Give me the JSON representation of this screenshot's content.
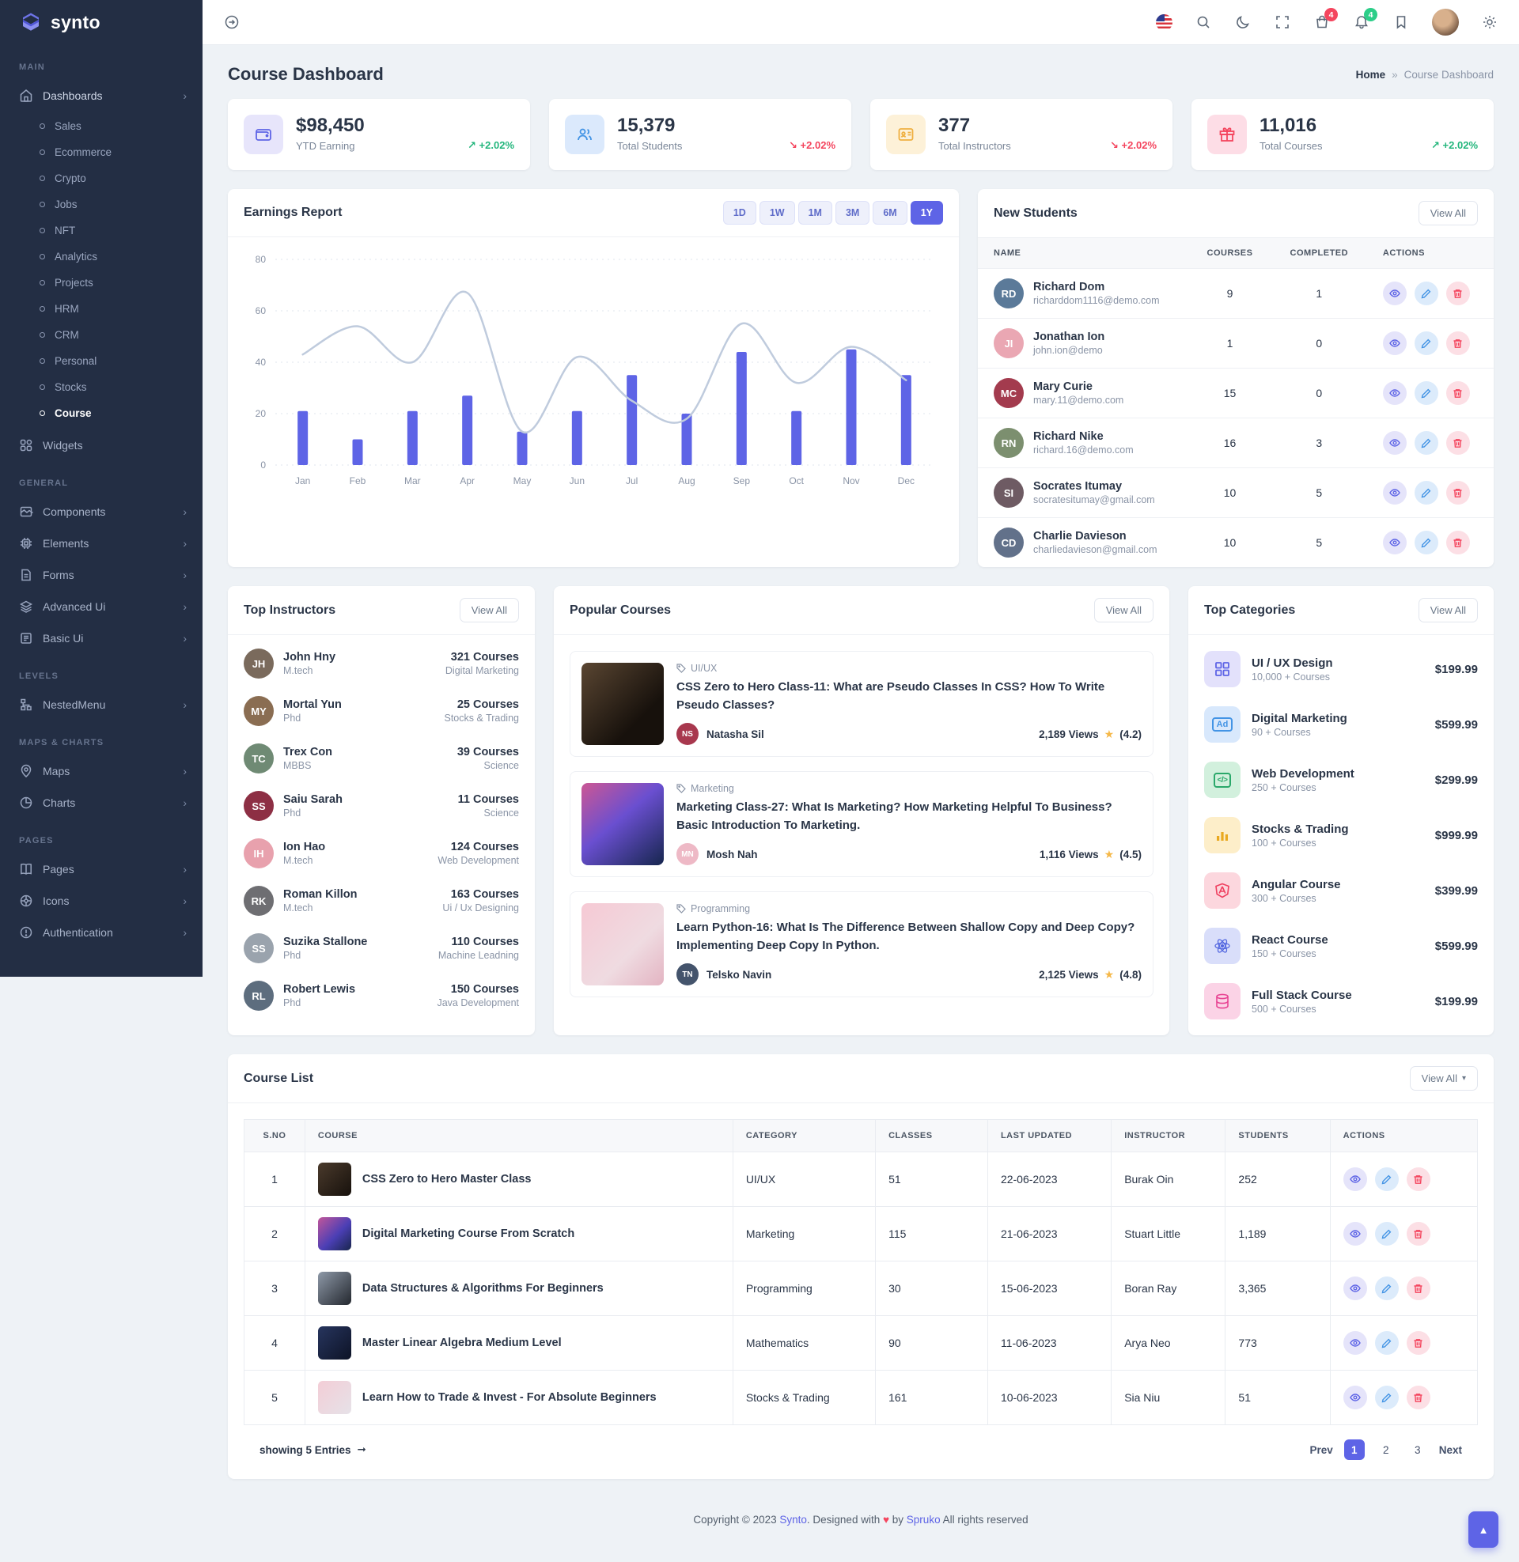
{
  "colors": {
    "primary": "#5e64e6",
    "green": "#23b67c",
    "red": "#f4455e",
    "sidebar_bg": "#232e44"
  },
  "sidebar": {
    "brand": "synto",
    "section_main": "MAIN",
    "dashboards": "Dashboards",
    "dashboard_children": [
      "Sales",
      "Ecommerce",
      "Crypto",
      "Jobs",
      "NFT",
      "Analytics",
      "Projects",
      "HRM",
      "CRM",
      "Personal",
      "Stocks",
      "Course"
    ],
    "active_child": "Course",
    "widgets": "Widgets",
    "section_general": "GENERAL",
    "general_items": [
      "Components",
      "Elements",
      "Forms",
      "Advanced Ui",
      "Basic Ui"
    ],
    "section_levels": "LEVELS",
    "levels_items": [
      "NestedMenu"
    ],
    "section_maps": "MAPS & CHARTS",
    "maps_items": [
      "Maps",
      "Charts"
    ],
    "section_pages": "PAGES",
    "pages_items": [
      "Pages",
      "Icons",
      "Authentication"
    ]
  },
  "topbar": {
    "cart_badge": "4",
    "notification_badge": "4"
  },
  "page": {
    "title": "Course Dashboard",
    "breadcrumb_home": "Home",
    "breadcrumb_sep": "»",
    "breadcrumb_current": "Course Dashboard"
  },
  "stats": [
    {
      "value": "$98,450",
      "label": "YTD Earning",
      "trend": "+2.02%",
      "trend_dir": "up",
      "trend_arrow": "↗",
      "icon": "wallet-icon",
      "icon_style": "background:#e7e5fb;color:#5e64e6"
    },
    {
      "value": "15,379",
      "label": "Total Students",
      "trend": "+2.02%",
      "trend_dir": "down",
      "trend_arrow": "↘",
      "icon": "students-icon",
      "icon_style": "background:#dbe9fc;color:#4394e5"
    },
    {
      "value": "377",
      "label": "Total Instructors",
      "trend": "+2.02%",
      "trend_dir": "down",
      "trend_arrow": "↘",
      "icon": "id-card-icon",
      "icon_style": "background:#fdf1d8;color:#efb041"
    },
    {
      "value": "11,016",
      "label": "Total Courses",
      "trend": "+2.02%",
      "trend_dir": "up",
      "trend_arrow": "↗",
      "icon": "gift-icon",
      "icon_style": "background:#fddde6;color:#f4455e"
    }
  ],
  "earnings": {
    "title": "Earnings Report",
    "ranges": [
      "1D",
      "1W",
      "1M",
      "3M",
      "6M",
      "1Y"
    ],
    "active": "1Y"
  },
  "chart_data": {
    "type": "bar",
    "title": "Earnings Report",
    "categories": [
      "Jan",
      "Feb",
      "Mar",
      "Apr",
      "May",
      "Jun",
      "Jul",
      "Aug",
      "Sep",
      "Oct",
      "Nov",
      "Dec"
    ],
    "series": [
      {
        "name": "Earnings",
        "type": "bar",
        "values": [
          21,
          10,
          21,
          27,
          13,
          21,
          35,
          20,
          44,
          21,
          45,
          35
        ]
      },
      {
        "name": "Trend",
        "type": "line",
        "values": [
          43,
          54,
          40,
          67,
          13,
          42,
          25,
          18,
          55,
          32,
          46,
          33
        ]
      }
    ],
    "ylim": [
      0,
      80
    ],
    "yticks": [
      0,
      20,
      40,
      60,
      80
    ],
    "grid": "dashed-horizontal",
    "legend": "none",
    "bar_color": "#5e64e6",
    "line_color": "#bfcbdd"
  },
  "new_students": {
    "title": "New Students",
    "view_all": "View All",
    "columns": [
      "NAME",
      "COURSES",
      "COMPLETED",
      "ACTIONS"
    ],
    "rows": [
      {
        "name": "Richard Dom",
        "email": "richarddom1116@demo.com",
        "courses": "9",
        "completed": "1",
        "initials": "RD",
        "avatar_style": "background:#5b7a99"
      },
      {
        "name": "Jonathan Ion",
        "email": "john.ion@demo",
        "courses": "1",
        "completed": "0",
        "initials": "JI",
        "avatar_style": "background:#eaa7b3"
      },
      {
        "name": "Mary Curie",
        "email": "mary.11@demo.com",
        "courses": "15",
        "completed": "0",
        "initials": "MC",
        "avatar_style": "background:#a33b4e"
      },
      {
        "name": "Richard Nike",
        "email": "richard.16@demo.com",
        "courses": "16",
        "completed": "3",
        "initials": "RN",
        "avatar_style": "background:#7c8f6f"
      },
      {
        "name": "Socrates Itumay",
        "email": "socratesitumay@gmail.com",
        "courses": "10",
        "completed": "5",
        "initials": "SI",
        "avatar_style": "background:#6e5b63"
      },
      {
        "name": "Charlie Davieson",
        "email": "charliedavieson@gmail.com",
        "courses": "10",
        "completed": "5",
        "initials": "CD",
        "avatar_style": "background:#62718a"
      }
    ]
  },
  "top_instructors": {
    "title": "Top Instructors",
    "view_all": "View All",
    "items": [
      {
        "name": "John Hny",
        "degree": "M.tech",
        "courses": "321 Courses",
        "field": "Digital Marketing",
        "initials": "JH",
        "avatar_style": "background:#7a6a5c"
      },
      {
        "name": "Mortal Yun",
        "degree": "Phd",
        "courses": "25 Courses",
        "field": "Stocks & Trading",
        "initials": "MY",
        "avatar_style": "background:#8a6d52"
      },
      {
        "name": "Trex Con",
        "degree": "MBBS",
        "courses": "39 Courses",
        "field": "Science",
        "initials": "TC",
        "avatar_style": "background:#6f8a74"
      },
      {
        "name": "Saiu Sarah",
        "degree": "Phd",
        "courses": "11 Courses",
        "field": "Science",
        "initials": "SS",
        "avatar_style": "background:#8d2f44"
      },
      {
        "name": "Ion Hao",
        "degree": "M.tech",
        "courses": "124 Courses",
        "field": "Web Development",
        "initials": "IH",
        "avatar_style": "background:#e8a1ad"
      },
      {
        "name": "Roman Killon",
        "degree": "M.tech",
        "courses": "163 Courses",
        "field": "Ui / Ux Designing",
        "initials": "RK",
        "avatar_style": "background:#6e6e72"
      },
      {
        "name": "Suzika Stallone",
        "degree": "Phd",
        "courses": "110 Courses",
        "field": "Machine Leadning",
        "initials": "SS",
        "avatar_style": "background:#9aa3ad"
      },
      {
        "name": "Robert Lewis",
        "degree": "Phd",
        "courses": "150 Courses",
        "field": "Java Development",
        "initials": "RL",
        "avatar_style": "background:#5d6d7e"
      }
    ]
  },
  "popular_courses": {
    "title": "Popular Courses",
    "view_all": "View All",
    "items": [
      {
        "category": "UI/UX",
        "title": "CSS Zero to Hero Class-11: What are Pseudo Classes In CSS? How To Write Pseudo Classes?",
        "author": "Natasha Sil",
        "author_initials": "NS",
        "author_style": "background:#a8384e",
        "views": "2,189 Views",
        "rating": "(4.2)",
        "thumb_style": "background:linear-gradient(135deg,#5a4632,#17110c 70%)"
      },
      {
        "category": "Marketing",
        "title": "Marketing Class-27: What Is Marketing? How Marketing Helpful To Business? Basic Introduction To Marketing.",
        "author": "Mosh Nah",
        "author_initials": "MN",
        "author_style": "background:#eeb9c6",
        "views": "1,116 Views",
        "rating": "(4.5)",
        "thumb_style": "background:linear-gradient(140deg,#c2569a 5%,#6a4fd0 45%,#16264e)"
      },
      {
        "category": "Programming",
        "title": "Learn Python-16: What Is The Difference Between Shallow Copy and Deep Copy? Implementing Deep Copy In Python.",
        "author": "Telsko Navin",
        "author_initials": "TN",
        "author_style": "background:#44546c",
        "views": "2,125 Views",
        "rating": "(4.8)",
        "thumb_style": "background:linear-gradient(135deg,#f6c9d4,#efdbe1 60%,#e3b4c2)"
      }
    ]
  },
  "top_categories": {
    "title": "Top Categories",
    "view_all": "View All",
    "items": [
      {
        "name": "UI / UX Design",
        "count": "10,000 + Courses",
        "price": "$199.99",
        "icon": "grid-icon",
        "icon_style": "background:#e3e1fb;color:#5e64e6"
      },
      {
        "name": "Digital Marketing",
        "count": "90 + Courses",
        "price": "$599.99",
        "icon": "ad-icon",
        "icon_style": "background:#d8e8fc;color:#4394e5"
      },
      {
        "name": "Web Development",
        "count": "250 + Courses",
        "price": "$299.99",
        "icon": "code-icon",
        "icon_style": "background:#d2f0dd;color:#2aa86a"
      },
      {
        "name": "Stocks & Trading",
        "count": "100 + Courses",
        "price": "$999.99",
        "icon": "chart-bars-icon",
        "icon_style": "background:#fdeec9;color:#e9a81f"
      },
      {
        "name": "Angular Course",
        "count": "300 + Courses",
        "price": "$399.99",
        "icon": "angular-icon",
        "icon_style": "background:#fcd7de;color:#ef3f5f"
      },
      {
        "name": "React Course",
        "count": "150 + Courses",
        "price": "$599.99",
        "icon": "react-icon",
        "icon_style": "background:#d9defa;color:#5468e0"
      },
      {
        "name": "Full Stack Course",
        "count": "500 + Courses",
        "price": "$199.99",
        "icon": "database-icon",
        "icon_style": "background:#fbd3e6;color:#e84393"
      }
    ]
  },
  "course_list": {
    "title": "Course List",
    "view_all": "View All",
    "columns": [
      "S.NO",
      "COURSE",
      "CATEGORY",
      "CLASSES",
      "LAST UPDATED",
      "INSTRUCTOR",
      "STUDENTS",
      "ACTIONS"
    ],
    "rows": [
      {
        "sno": "1",
        "title": "CSS Zero to Hero Master Class",
        "category": "UI/UX",
        "classes": "51",
        "updated": "22-06-2023",
        "instructor": "Burak Oin",
        "students": "252",
        "thumb_style": "background:linear-gradient(135deg,#4a3a2c,#17110c)"
      },
      {
        "sno": "2",
        "title": "Digital Marketing Course From Scratch",
        "category": "Marketing",
        "classes": "115",
        "updated": "21-06-2023",
        "instructor": "Stuart Little",
        "students": "1,189",
        "thumb_style": "background:linear-gradient(135deg,#c2569a,#4b3fb5 55%,#18264c)"
      },
      {
        "sno": "3",
        "title": "Data Structures & Algorithms For Beginners",
        "category": "Programming",
        "classes": "30",
        "updated": "15-06-2023",
        "instructor": "Boran Ray",
        "students": "3,365",
        "thumb_style": "background:linear-gradient(135deg,#8e99a8,#23272e)"
      },
      {
        "sno": "4",
        "title": "Master Linear Algebra Medium Level",
        "category": "Mathematics",
        "classes": "90",
        "updated": "11-06-2023",
        "instructor": "Arya Neo",
        "students": "773",
        "thumb_style": "background:linear-gradient(135deg,#27355e,#0d1326)"
      },
      {
        "sno": "5",
        "title": "Learn How to Trade & Invest - For Absolute Beginners",
        "category": "Stocks & Trading",
        "classes": "161",
        "updated": "10-06-2023",
        "instructor": "Sia Niu",
        "students": "51",
        "thumb_style": "background:linear-gradient(135deg,#f3cdd6,#e6e2e8)"
      }
    ],
    "showing": "showing 5 Entries",
    "pagination": {
      "prev": "Prev",
      "pages": [
        "1",
        "2",
        "3"
      ],
      "next": "Next",
      "active": "1"
    }
  },
  "footer": {
    "copyright_prefix": "Copyright © 2023",
    "brand": "Synto",
    "middle": ". Designed with",
    "heart": "♥",
    "by": "by",
    "designer": "Spruko",
    "suffix": "All rights reserved"
  }
}
